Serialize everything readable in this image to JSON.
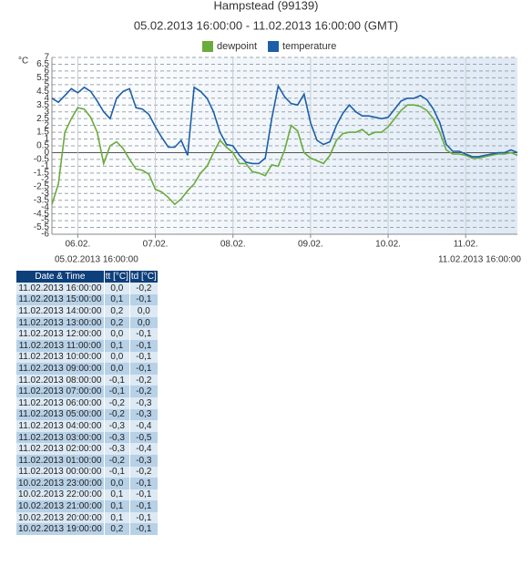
{
  "chart_data": {
    "type": "line",
    "title": "Hampstead (99139)",
    "subtitle": "05.02.2013 16:00:00 - 11.02.2013 16:00:00 (GMT)",
    "y_label": "°C",
    "grid": true,
    "ylim": [
      -6,
      7
    ],
    "yticks": [
      -6,
      -5.5,
      -5,
      -4.5,
      -4,
      -3.5,
      -3,
      -2.5,
      -2,
      -1.5,
      -1,
      -0.5,
      0,
      0.5,
      1,
      1.5,
      2,
      2.5,
      3,
      3.5,
      4,
      4.5,
      5,
      5.5,
      6,
      6.5,
      7
    ],
    "xlim": [
      "05.02.2013 16:00:00",
      "11.02.2013 16:00:00"
    ],
    "xticks": [
      {
        "value": "06.02.2013 00:00:00",
        "label": "06.02."
      },
      {
        "value": "07.02.2013 00:00:00",
        "label": "07.02."
      },
      {
        "value": "08.02.2013 00:00:00",
        "label": "08.02."
      },
      {
        "value": "09.02.2013 00:00:00",
        "label": "09.02."
      },
      {
        "value": "10.02.2013 00:00:00",
        "label": "10.02."
      },
      {
        "value": "11.02.2013 00:00:00",
        "label": "11.02."
      }
    ],
    "x": [
      "05.02.2013 16:00:00",
      "05.02.2013 18:00:00",
      "05.02.2013 20:00:00",
      "05.02.2013 22:00:00",
      "06.02.2013 00:00:00",
      "06.02.2013 02:00:00",
      "06.02.2013 04:00:00",
      "06.02.2013 06:00:00",
      "06.02.2013 08:00:00",
      "06.02.2013 10:00:00",
      "06.02.2013 12:00:00",
      "06.02.2013 14:00:00",
      "06.02.2013 16:00:00",
      "06.02.2013 18:00:00",
      "06.02.2013 20:00:00",
      "06.02.2013 22:00:00",
      "07.02.2013 00:00:00",
      "07.02.2013 02:00:00",
      "07.02.2013 04:00:00",
      "07.02.2013 06:00:00",
      "07.02.2013 08:00:00",
      "07.02.2013 10:00:00",
      "07.02.2013 12:00:00",
      "07.02.2013 14:00:00",
      "07.02.2013 16:00:00",
      "07.02.2013 18:00:00",
      "07.02.2013 20:00:00",
      "07.02.2013 22:00:00",
      "08.02.2013 00:00:00",
      "08.02.2013 02:00:00",
      "08.02.2013 04:00:00",
      "08.02.2013 06:00:00",
      "08.02.2013 08:00:00",
      "08.02.2013 10:00:00",
      "08.02.2013 12:00:00",
      "08.02.2013 14:00:00",
      "08.02.2013 16:00:00",
      "08.02.2013 18:00:00",
      "08.02.2013 20:00:00",
      "08.02.2013 22:00:00",
      "09.02.2013 00:00:00",
      "09.02.2013 02:00:00",
      "09.02.2013 04:00:00",
      "09.02.2013 06:00:00",
      "09.02.2013 08:00:00",
      "09.02.2013 10:00:00",
      "09.02.2013 12:00:00",
      "09.02.2013 14:00:00",
      "09.02.2013 16:00:00",
      "09.02.2013 18:00:00",
      "09.02.2013 20:00:00",
      "09.02.2013 22:00:00",
      "10.02.2013 00:00:00",
      "10.02.2013 02:00:00",
      "10.02.2013 04:00:00",
      "10.02.2013 06:00:00",
      "10.02.2013 08:00:00",
      "10.02.2013 10:00:00",
      "10.02.2013 12:00:00",
      "10.02.2013 14:00:00",
      "10.02.2013 16:00:00",
      "10.02.2013 18:00:00",
      "10.02.2013 20:00:00",
      "10.02.2013 22:00:00",
      "11.02.2013 00:00:00",
      "11.02.2013 02:00:00",
      "11.02.2013 04:00:00",
      "11.02.2013 06:00:00",
      "11.02.2013 08:00:00",
      "11.02.2013 10:00:00",
      "11.02.2013 12:00:00",
      "11.02.2013 14:00:00",
      "11.02.2013 16:00:00"
    ],
    "series": [
      {
        "name": "dewpoint",
        "color": "#6aab3c",
        "values": [
          -3.8,
          -2.3,
          1.5,
          2.5,
          3.3,
          3.2,
          2.6,
          1.5,
          -0.8,
          0.5,
          0.8,
          0.3,
          -0.5,
          -1.2,
          -1.3,
          -1.6,
          -2.7,
          -2.9,
          -3.3,
          -3.8,
          -3.4,
          -2.8,
          -2.3,
          -1.5,
          -1.0,
          0.0,
          0.9,
          0.4,
          0.0,
          -0.8,
          -0.8,
          -1.4,
          -1.5,
          -1.7,
          -0.9,
          -1.0,
          0.2,
          2.0,
          1.6,
          0.0,
          -0.4,
          -0.6,
          -0.8,
          -0.2,
          0.9,
          1.4,
          1.5,
          1.5,
          1.7,
          1.3,
          1.5,
          1.5,
          1.9,
          2.5,
          3.1,
          3.5,
          3.5,
          3.4,
          3.1,
          2.5,
          1.5,
          0.2,
          -0.1,
          -0.1,
          -0.2,
          -0.4,
          -0.4,
          -0.3,
          -0.2,
          -0.1,
          -0.1,
          0.0,
          -0.2
        ]
      },
      {
        "name": "temperature",
        "color": "#1c5fa8",
        "values": [
          4.0,
          3.7,
          4.2,
          4.7,
          4.4,
          4.8,
          4.5,
          3.8,
          3.0,
          2.5,
          4.0,
          4.5,
          4.7,
          3.3,
          3.2,
          2.8,
          1.9,
          1.1,
          0.4,
          0.4,
          0.9,
          -0.2,
          4.8,
          4.5,
          4.0,
          3.0,
          1.5,
          0.6,
          0.5,
          -0.2,
          -0.7,
          -0.8,
          -0.8,
          -0.4,
          2.5,
          4.9,
          4.1,
          3.6,
          3.5,
          4.3,
          2.2,
          0.9,
          0.6,
          0.8,
          2.0,
          2.9,
          3.5,
          3.0,
          2.7,
          2.7,
          2.6,
          2.5,
          2.6,
          3.2,
          3.8,
          4.0,
          4.0,
          4.2,
          3.9,
          3.2,
          2.2,
          0.6,
          0.1,
          0.1,
          -0.1,
          -0.3,
          -0.3,
          -0.2,
          -0.1,
          0.0,
          0.0,
          0.2,
          0.0
        ]
      }
    ]
  },
  "table": {
    "header": [
      "Date & Time",
      "tt [°C]",
      "td [°C]"
    ],
    "rows": [
      [
        "11.02.2013 16:00:00",
        "0,0",
        "-0,2"
      ],
      [
        "11.02.2013 15:00:00",
        "0,1",
        "-0,1"
      ],
      [
        "11.02.2013 14:00:00",
        "0,2",
        "0,0"
      ],
      [
        "11.02.2013 13:00:00",
        "0,2",
        "0,0"
      ],
      [
        "11.02.2013 12:00:00",
        "0,0",
        "-0,1"
      ],
      [
        "11.02.2013 11:00:00",
        "0,1",
        "-0,1"
      ],
      [
        "11.02.2013 10:00:00",
        "0,0",
        "-0,1"
      ],
      [
        "11.02.2013 09:00:00",
        "0,0",
        "-0,1"
      ],
      [
        "11.02.2013 08:00:00",
        "-0,1",
        "-0,2"
      ],
      [
        "11.02.2013 07:00:00",
        "-0,1",
        "-0,2"
      ],
      [
        "11.02.2013 06:00:00",
        "-0,2",
        "-0,3"
      ],
      [
        "11.02.2013 05:00:00",
        "-0,2",
        "-0,3"
      ],
      [
        "11.02.2013 04:00:00",
        "-0,3",
        "-0,4"
      ],
      [
        "11.02.2013 03:00:00",
        "-0,3",
        "-0,5"
      ],
      [
        "11.02.2013 02:00:00",
        "-0,3",
        "-0,4"
      ],
      [
        "11.02.2013 01:00:00",
        "-0,2",
        "-0,3"
      ],
      [
        "11.02.2013 00:00:00",
        "-0,1",
        "-0,2"
      ],
      [
        "10.02.2013 23:00:00",
        "0,0",
        "-0,1"
      ],
      [
        "10.02.2013 22:00:00",
        "0,1",
        "-0,1"
      ],
      [
        "10.02.2013 21:00:00",
        "0,1",
        "-0,1"
      ],
      [
        "10.02.2013 20:00:00",
        "0,1",
        "-0,1"
      ],
      [
        "10.02.2013 19:00:00",
        "0,2",
        "-0,1"
      ]
    ]
  }
}
